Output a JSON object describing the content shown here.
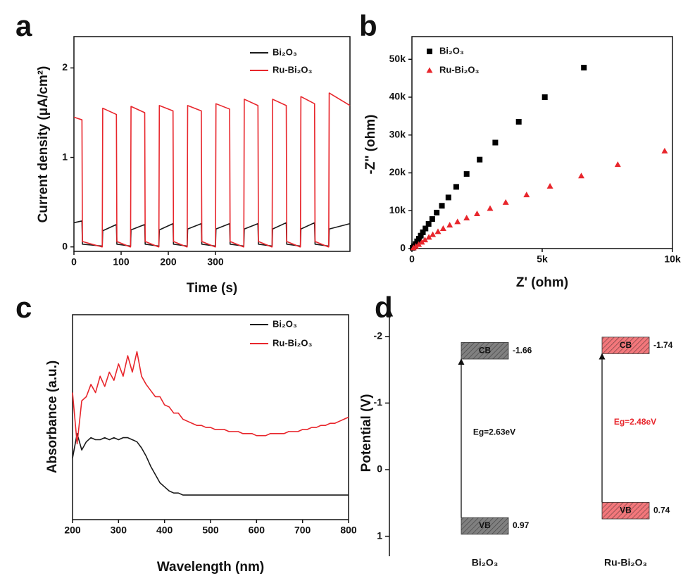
{
  "chart_data": [
    {
      "panel": "a",
      "type": "line",
      "xlabel": "Time (s)",
      "ylabel": "Current density (μA/cm²)",
      "xlim": [
        0,
        585
      ],
      "xticks": [
        0,
        100,
        200,
        300
      ],
      "ylim": [
        -0.05,
        2.35
      ],
      "yticks": [
        0,
        1,
        2
      ],
      "x": [
        0,
        17,
        18,
        59,
        60,
        61,
        90,
        91,
        119,
        120,
        121,
        150,
        151,
        179,
        180,
        181,
        210,
        211,
        239,
        240,
        241,
        270,
        271,
        299,
        300,
        301,
        330,
        331,
        359,
        360,
        361,
        390,
        391,
        419,
        420,
        421,
        450,
        451,
        479,
        480,
        481,
        510,
        511,
        539,
        540,
        541,
        585
      ],
      "series": [
        {
          "name": "Bi₂O₃",
          "color": "#1a1a1a",
          "values": [
            0.27,
            0.29,
            0.03,
            0.01,
            0.01,
            0.18,
            0.25,
            0.03,
            0.01,
            0.01,
            0.19,
            0.25,
            0.03,
            0.01,
            0.01,
            0.19,
            0.26,
            0.03,
            0.01,
            0.01,
            0.2,
            0.26,
            0.03,
            0.01,
            0.01,
            0.2,
            0.26,
            0.03,
            0.01,
            0.01,
            0.2,
            0.26,
            0.03,
            0.01,
            0.01,
            0.2,
            0.27,
            0.03,
            0.01,
            0.01,
            0.2,
            0.27,
            0.03,
            0.01,
            0.01,
            0.2,
            0.26
          ]
        },
        {
          "name": "Ru-Bi₂O₃",
          "color": "#e8262c",
          "values": [
            1.45,
            1.42,
            0.06,
            0.0,
            0.0,
            1.55,
            1.48,
            0.06,
            0.0,
            0.0,
            1.57,
            1.5,
            0.06,
            0.0,
            0.0,
            1.58,
            1.52,
            0.06,
            0.0,
            0.0,
            1.58,
            1.52,
            0.06,
            0.0,
            0.0,
            1.6,
            1.54,
            0.06,
            0.0,
            0.0,
            1.65,
            1.58,
            0.06,
            0.0,
            0.0,
            1.65,
            1.58,
            0.06,
            0.0,
            0.0,
            1.68,
            1.6,
            0.06,
            0.0,
            0.0,
            1.72,
            1.58
          ]
        }
      ]
    },
    {
      "panel": "b",
      "type": "scatter",
      "xlabel": "Z' (ohm)",
      "ylabel": "-Z'' (ohm)",
      "xlim": [
        0,
        10000
      ],
      "xticks": [
        0,
        {
          "value": 5000,
          "label": "5k"
        },
        {
          "value": 10000,
          "label": "10k"
        }
      ],
      "ylim": [
        0,
        56000
      ],
      "yticks": [
        0,
        {
          "value": 10000,
          "label": "10k"
        },
        {
          "value": 20000,
          "label": "20k"
        },
        {
          "value": 30000,
          "label": "30k"
        },
        {
          "value": 40000,
          "label": "40k"
        },
        {
          "value": 50000,
          "label": "50k"
        }
      ],
      "series": [
        {
          "name": "Bi₂O₃",
          "color": "#000000",
          "marker": "square",
          "x": [
            6600,
            5100,
            4100,
            3200,
            2600,
            2100,
            1700,
            1400,
            1150,
            950,
            780,
            640,
            520,
            420,
            340,
            270,
            200,
            140,
            80,
            30
          ],
          "values": [
            47800,
            40000,
            33500,
            28000,
            23500,
            19700,
            16300,
            13500,
            11300,
            9500,
            7800,
            6500,
            5300,
            4300,
            3400,
            2600,
            1900,
            1200,
            600,
            200
          ]
        },
        {
          "name": "Ru-Bi₂O₃",
          "color": "#e8262c",
          "marker": "triangle",
          "x": [
            9700,
            7900,
            6500,
            5300,
            4400,
            3600,
            3000,
            2500,
            2100,
            1750,
            1450,
            1200,
            1000,
            800,
            650,
            500,
            380,
            260,
            150,
            60
          ],
          "values": [
            25800,
            22200,
            19200,
            16500,
            14200,
            12200,
            10600,
            9200,
            8100,
            7100,
            6200,
            5300,
            4500,
            3700,
            3000,
            2300,
            1700,
            1100,
            600,
            200
          ]
        }
      ]
    },
    {
      "panel": "c",
      "type": "line",
      "xlabel": "Wavelength (nm)",
      "ylabel": "Absorbance (a.u.)",
      "xlim": [
        200,
        800
      ],
      "xticks": [
        200,
        300,
        400,
        500,
        600,
        700,
        800
      ],
      "ylim": [
        0,
        1
      ],
      "x": [
        200,
        210,
        220,
        230,
        240,
        250,
        260,
        270,
        280,
        290,
        300,
        310,
        320,
        330,
        340,
        350,
        360,
        370,
        380,
        390,
        400,
        410,
        420,
        430,
        440,
        450,
        460,
        470,
        480,
        490,
        500,
        510,
        520,
        530,
        540,
        550,
        560,
        570,
        580,
        590,
        600,
        610,
        620,
        630,
        640,
        650,
        660,
        670,
        680,
        690,
        700,
        710,
        720,
        730,
        740,
        750,
        760,
        770,
        780,
        790,
        800
      ],
      "series": [
        {
          "name": "Bi₂O₃",
          "color": "#1a1a1a",
          "values": [
            0.3,
            0.42,
            0.34,
            0.38,
            0.4,
            0.39,
            0.39,
            0.4,
            0.39,
            0.4,
            0.39,
            0.4,
            0.4,
            0.39,
            0.38,
            0.35,
            0.31,
            0.26,
            0.22,
            0.18,
            0.16,
            0.14,
            0.13,
            0.13,
            0.12,
            0.12,
            0.12,
            0.12,
            0.12,
            0.12,
            0.12,
            0.12,
            0.12,
            0.12,
            0.12,
            0.12,
            0.12,
            0.12,
            0.12,
            0.12,
            0.12,
            0.12,
            0.12,
            0.12,
            0.12,
            0.12,
            0.12,
            0.12,
            0.12,
            0.12,
            0.12,
            0.12,
            0.12,
            0.12,
            0.12,
            0.12,
            0.12,
            0.12,
            0.12,
            0.12,
            0.12
          ]
        },
        {
          "name": "Ru-Bi₂O₃",
          "color": "#e8262c",
          "values": [
            0.62,
            0.37,
            0.58,
            0.6,
            0.66,
            0.62,
            0.7,
            0.65,
            0.72,
            0.68,
            0.76,
            0.7,
            0.8,
            0.72,
            0.82,
            0.7,
            0.66,
            0.63,
            0.6,
            0.6,
            0.56,
            0.55,
            0.52,
            0.52,
            0.49,
            0.48,
            0.47,
            0.46,
            0.46,
            0.45,
            0.45,
            0.44,
            0.44,
            0.44,
            0.43,
            0.43,
            0.43,
            0.42,
            0.42,
            0.42,
            0.41,
            0.41,
            0.41,
            0.42,
            0.42,
            0.42,
            0.42,
            0.43,
            0.43,
            0.43,
            0.44,
            0.44,
            0.45,
            0.45,
            0.46,
            0.46,
            0.47,
            0.47,
            0.48,
            0.49,
            0.5
          ]
        }
      ]
    },
    {
      "panel": "d",
      "type": "band",
      "ylabel": "Potential (V)",
      "ylim": [
        1.3,
        -2.4
      ],
      "yticks": [
        -2,
        -1,
        0,
        1
      ],
      "categories": [
        "Bi₂O₃",
        "Ru-Bi₂O₃"
      ],
      "cb": [
        -1.66,
        -1.74
      ],
      "vb": [
        0.97,
        0.74
      ],
      "cb_label": "CB",
      "vb_label": "VB",
      "gap_labels": [
        "Eg=2.63eV",
        "Eg=2.48eV"
      ],
      "colors": [
        "#555555",
        "#ef4a4f"
      ],
      "label_colors": [
        "#111111",
        "#e8262c"
      ]
    }
  ]
}
